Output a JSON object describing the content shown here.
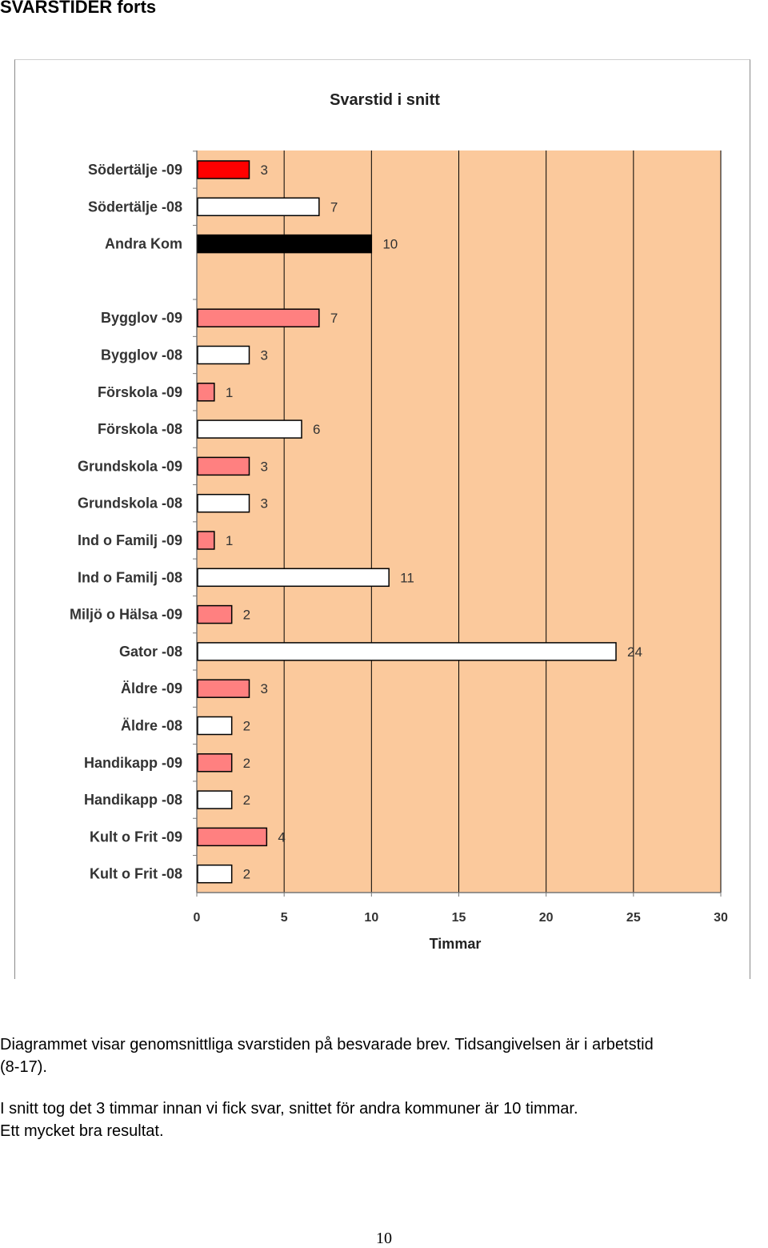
{
  "page": {
    "heading": "SVARSTIDER forts",
    "paragraph1_line1": "Diagrammet visar genomsnittliga svarstiden på besvarade brev. Tidsangivelsen är i arbetstid",
    "paragraph1_line2": "(8-17).",
    "paragraph2_line1": "I snitt tog det 3 timmar innan vi fick svar, snittet för andra kommuner är 10 timmar.",
    "paragraph2_line2": "Ett mycket bra resultat.",
    "page_number": "10"
  },
  "colors": {
    "plot_background": "#FBC99C",
    "red_bar": "#FF0000",
    "pink_bar": "#FF8080",
    "white_bar": "#FFFFFF",
    "black_bar": "#000000"
  },
  "chart_data": {
    "type": "bar",
    "orientation": "horizontal",
    "title": "Svarstid i snitt",
    "xlabel": "Timmar",
    "ylabel": "",
    "xlim": [
      0,
      30
    ],
    "xticks": [
      "0",
      "5",
      "10",
      "15",
      "20",
      "25",
      "30"
    ],
    "grid": "vertical",
    "legend": "none",
    "gap_after_index": 2,
    "categories": [
      "Södertälje -09",
      "Södertälje -08",
      "Andra Kom",
      "Bygglov -09",
      "Bygglov -08",
      "Förskola -09",
      "Förskola -08",
      "Grundskola -09",
      "Grundskola -08",
      "Ind o Familj -09",
      "Ind o Familj -08",
      "Miljö o Hälsa -09",
      "Gator -08",
      "Äldre -09",
      "Äldre -08",
      "Handikapp -09",
      "Handikapp -08",
      "Kult o Frit -09",
      "Kult o Frit -08"
    ],
    "values": [
      3,
      7,
      10,
      7,
      3,
      1,
      6,
      3,
      3,
      1,
      11,
      2,
      24,
      3,
      2,
      2,
      2,
      4,
      2
    ],
    "bar_colors": [
      "#FF0000",
      "#FFFFFF",
      "#000000",
      "#FF8080",
      "#FFFFFF",
      "#FF8080",
      "#FFFFFF",
      "#FF8080",
      "#FFFFFF",
      "#FF8080",
      "#FFFFFF",
      "#FF8080",
      "#FFFFFF",
      "#FF8080",
      "#FFFFFF",
      "#FF8080",
      "#FFFFFF",
      "#FF8080",
      "#FFFFFF"
    ]
  }
}
